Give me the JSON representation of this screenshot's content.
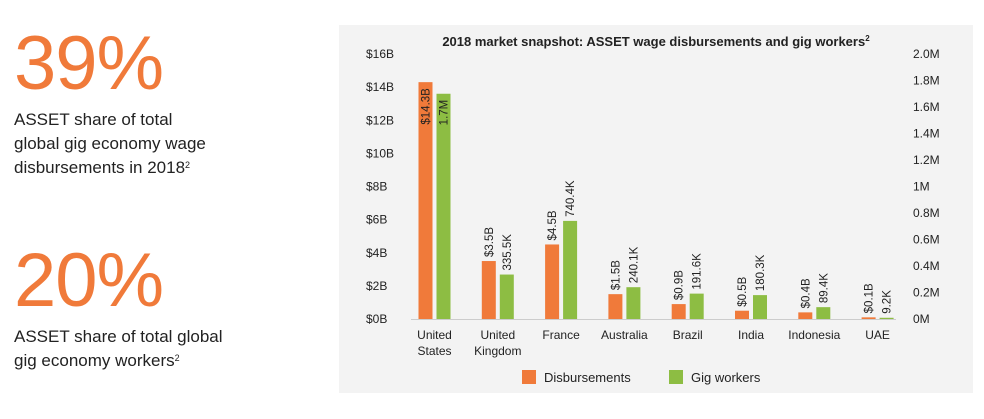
{
  "stats": [
    {
      "big": "39%",
      "line1": "ASSET share of total",
      "line2": "global gig economy wage",
      "line3": "disbursements in 2018",
      "sup": "2"
    },
    {
      "big": "20%",
      "line1": "ASSET share of total global",
      "line2": "gig economy workers",
      "sup": "2"
    }
  ],
  "colors": {
    "accent": "#f07a3a",
    "disbursements": "#f07a3a",
    "gig_workers": "#8dbd43"
  },
  "chart_data": {
    "type": "bar",
    "title": "2018 market snapshot: ASSET wage disbursements and gig workers",
    "title_sup": "2",
    "categories": [
      [
        "United",
        "States"
      ],
      [
        "United",
        "Kingdom"
      ],
      [
        "France"
      ],
      [
        "Australia"
      ],
      [
        "Brazil"
      ],
      [
        "India"
      ],
      [
        "Indonesia"
      ],
      [
        "UAE"
      ]
    ],
    "series": [
      {
        "name": "Disbursements",
        "axis": "left",
        "values": [
          14.3,
          3.5,
          4.5,
          1.5,
          0.9,
          0.5,
          0.4,
          0.1
        ],
        "labels": [
          "$14.3B",
          "$3.5B",
          "$4.5B",
          "$1.5B",
          "$0.9B",
          "$0.5B",
          "$0.4B",
          "$0.1B"
        ]
      },
      {
        "name": "Gig workers",
        "axis": "right",
        "values": [
          1.7,
          0.3355,
          0.7404,
          0.2401,
          0.1916,
          0.1803,
          0.0894,
          0.0092
        ],
        "labels": [
          "1.7M",
          "335.5K",
          "740.4K",
          "240.1K",
          "191.6K",
          "180.3K",
          "89.4K",
          "9.2K"
        ]
      }
    ],
    "ylim_left": [
      0,
      16
    ],
    "ylim_right": [
      0,
      2.0
    ],
    "left_ticks": [
      "$0B",
      "$2B",
      "$4B",
      "$6B",
      "$8B",
      "$10B",
      "$12B",
      "$14B",
      "$16B"
    ],
    "right_ticks": [
      "0M",
      "0.2M",
      "0.4M",
      "0.6M",
      "0.8M",
      "1M",
      "1.2M",
      "1.4M",
      "1.6M",
      "1.8M",
      "2.0M"
    ],
    "legend_position": "bottom-center",
    "grid": false
  }
}
